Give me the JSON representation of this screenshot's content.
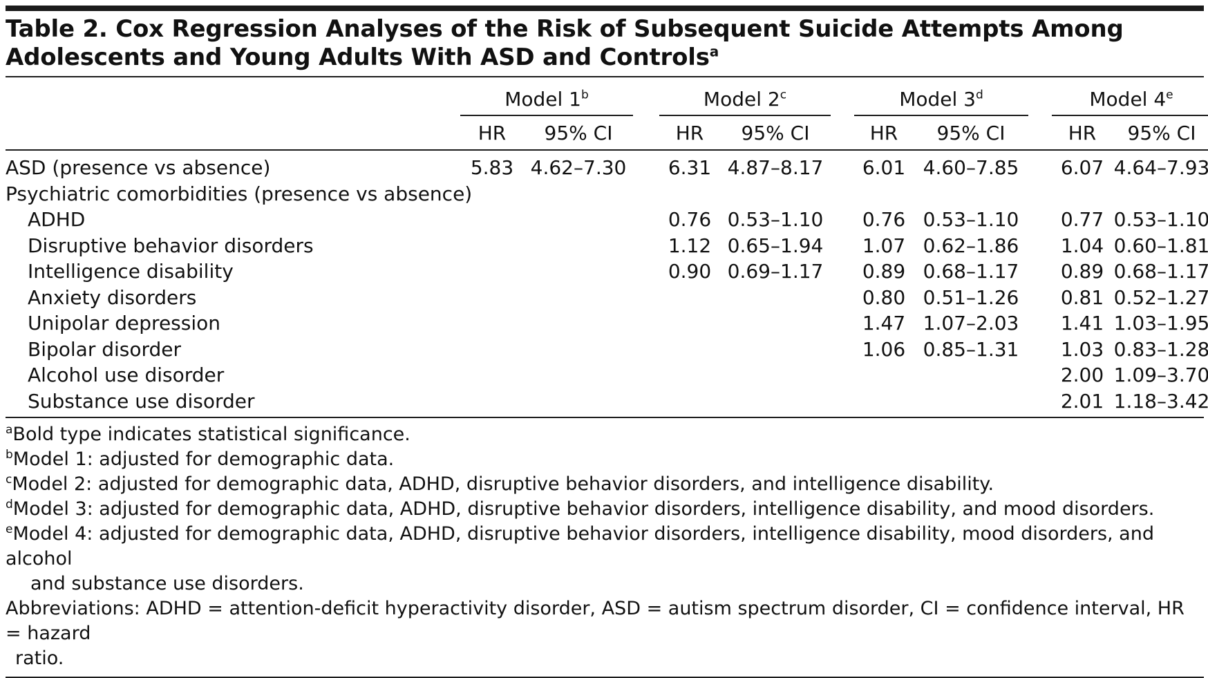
{
  "title": {
    "text": "Table 2. Cox Regression Analyses of the Risk of Subsequent Suicide Attempts Among Adolescents and Young Adults With ASD and Controls",
    "footnote_mark": "a"
  },
  "table": {
    "models": [
      {
        "label": "Model 1",
        "mark": "b"
      },
      {
        "label": "Model 2",
        "mark": "c"
      },
      {
        "label": "Model 3",
        "mark": "d"
      },
      {
        "label": "Model 4",
        "mark": "e"
      }
    ],
    "sub_headers": {
      "hr": "HR",
      "ci": "95% CI"
    },
    "rows": [
      {
        "label": "ASD (presence vs absence)",
        "indent": false,
        "m1": {
          "hr": "5.83",
          "ci": "4.62–7.30",
          "bold": true
        },
        "m2": {
          "hr": "6.31",
          "ci": "4.87–8.17",
          "bold": true
        },
        "m3": {
          "hr": "6.01",
          "ci": "4.60–7.85",
          "bold": true
        },
        "m4": {
          "hr": "6.07",
          "ci": "4.64–7.93",
          "bold": true
        }
      },
      {
        "label": "Psychiatric comorbidities (presence vs absence)",
        "indent": false,
        "m1": {
          "hr": "",
          "ci": ""
        },
        "m2": {
          "hr": "",
          "ci": ""
        },
        "m3": {
          "hr": "",
          "ci": ""
        },
        "m4": {
          "hr": "",
          "ci": ""
        }
      },
      {
        "label": "ADHD",
        "indent": true,
        "m1": {
          "hr": "",
          "ci": ""
        },
        "m2": {
          "hr": "0.76",
          "ci": "0.53–1.10"
        },
        "m3": {
          "hr": "0.76",
          "ci": "0.53–1.10"
        },
        "m4": {
          "hr": "0.77",
          "ci": "0.53–1.10"
        }
      },
      {
        "label": "Disruptive behavior disorders",
        "indent": true,
        "m1": {
          "hr": "",
          "ci": ""
        },
        "m2": {
          "hr": "1.12",
          "ci": "0.65–1.94"
        },
        "m3": {
          "hr": "1.07",
          "ci": "0.62–1.86"
        },
        "m4": {
          "hr": "1.04",
          "ci": "0.60–1.81"
        }
      },
      {
        "label": "Intelligence disability",
        "indent": true,
        "m1": {
          "hr": "",
          "ci": ""
        },
        "m2": {
          "hr": "0.90",
          "ci": "0.69–1.17"
        },
        "m3": {
          "hr": "0.89",
          "ci": "0.68–1.17"
        },
        "m4": {
          "hr": "0.89",
          "ci": "0.68–1.17"
        }
      },
      {
        "label": "Anxiety disorders",
        "indent": true,
        "m1": {
          "hr": "",
          "ci": ""
        },
        "m2": {
          "hr": "",
          "ci": ""
        },
        "m3": {
          "hr": "0.80",
          "ci": "0.51–1.26"
        },
        "m4": {
          "hr": "0.81",
          "ci": "0.52–1.27"
        }
      },
      {
        "label": "Unipolar depression",
        "indent": true,
        "m1": {
          "hr": "",
          "ci": ""
        },
        "m2": {
          "hr": "",
          "ci": ""
        },
        "m3": {
          "hr": "1.47",
          "ci": "1.07–2.03",
          "bold": true
        },
        "m4": {
          "hr": "1.41",
          "ci": "1.03–1.95",
          "bold": true
        }
      },
      {
        "label": "Bipolar disorder",
        "indent": true,
        "m1": {
          "hr": "",
          "ci": ""
        },
        "m2": {
          "hr": "",
          "ci": ""
        },
        "m3": {
          "hr": "1.06",
          "ci": "0.85–1.31"
        },
        "m4": {
          "hr": "1.03",
          "ci": "0.83–1.28"
        }
      },
      {
        "label": "Alcohol use disorder",
        "indent": true,
        "m1": {
          "hr": "",
          "ci": ""
        },
        "m2": {
          "hr": "",
          "ci": ""
        },
        "m3": {
          "hr": "",
          "ci": ""
        },
        "m4": {
          "hr": "2.00",
          "ci": "1.09–3.70",
          "bold": true
        }
      },
      {
        "label": "Substance use disorder",
        "indent": true,
        "m1": {
          "hr": "",
          "ci": ""
        },
        "m2": {
          "hr": "",
          "ci": ""
        },
        "m3": {
          "hr": "",
          "ci": ""
        },
        "m4": {
          "hr": "2.01",
          "ci": "1.18–3.42",
          "bold": true
        }
      }
    ]
  },
  "footnotes": [
    {
      "mark": "a",
      "text": "Bold type indicates statistical significance.",
      "cont": ""
    },
    {
      "mark": "b",
      "text": "Model 1: adjusted for demographic data.",
      "cont": ""
    },
    {
      "mark": "c",
      "text": "Model 2: adjusted for demographic data, ADHD, disruptive behavior disorders, and intelligence disability.",
      "cont": ""
    },
    {
      "mark": "d",
      "text": "Model 3: adjusted for demographic data, ADHD, disruptive behavior disorders, intelligence disability, and mood disorders.",
      "cont": ""
    },
    {
      "mark": "e",
      "text": "Model 4: adjusted for demographic data, ADHD, disruptive behavior disorders, intelligence disability, mood disorders, and alcohol",
      "cont": "and substance use disorders."
    }
  ],
  "abbreviations": {
    "line1": "Abbreviations: ADHD = attention-deficit hyperactivity disorder, ASD = autism spectrum disorder, CI = confidence interval, HR = hazard",
    "line2": "ratio."
  }
}
